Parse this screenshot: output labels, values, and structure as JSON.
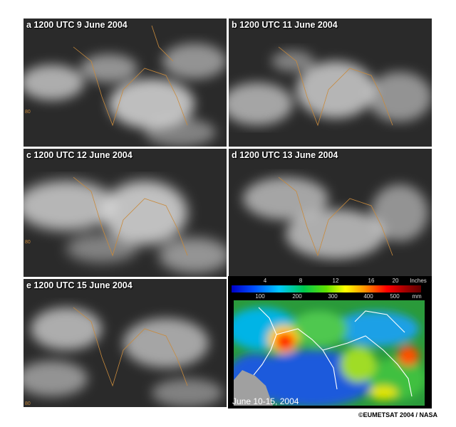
{
  "panels": [
    {
      "label": "a  1200 UTC 9 June 2004"
    },
    {
      "label": "b  1200 UTC 11 June 2004"
    },
    {
      "label": "c  1200 UTC 12 June 2004"
    },
    {
      "label": "d  1200 UTC 13 June 2004"
    },
    {
      "label": "e  1200 UTC 15 June 2004"
    }
  ],
  "tick_label": "80",
  "rainfall": {
    "inch_ticks": [
      "4",
      "8",
      "12",
      "16",
      "20"
    ],
    "inch_unit": "Inches",
    "mm_ticks": [
      "100",
      "200",
      "300",
      "400",
      "500"
    ],
    "mm_unit": "mm",
    "caption": "June 10-15, 2004"
  },
  "credit": "©EUMETSAT 2004 / NASA"
}
